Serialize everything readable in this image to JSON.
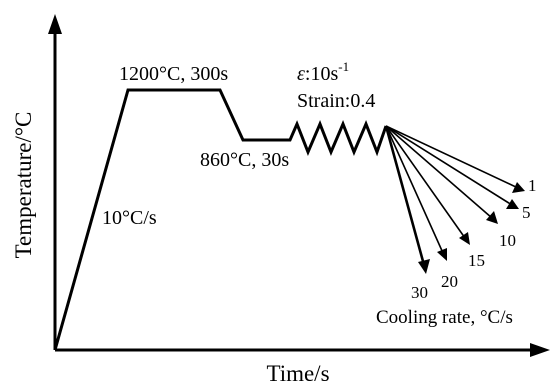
{
  "axes": {
    "y_label": "Temperature/°C",
    "x_label": "Time/s"
  },
  "annotations": {
    "heating_rate": "10°C/s",
    "soak": "1200°C, 300s",
    "hold": "860°C, 30s",
    "strain_rate_symbol": "ε",
    "strain_rate_value": ":10s",
    "strain_rate_exp": "-1",
    "strain": "Strain:0.4",
    "cooling_rate_caption": "Cooling rate, °C/s"
  },
  "cooling_rates": [
    "1",
    "5",
    "10",
    "15",
    "20",
    "30"
  ]
}
